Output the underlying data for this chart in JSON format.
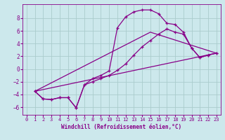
{
  "xlabel": "Windchill (Refroidissement éolien,°C)",
  "bg_color": "#cce8ec",
  "grid_color": "#aacccc",
  "line_color": "#880088",
  "xlim": [
    -0.5,
    23.5
  ],
  "ylim": [
    -7.2,
    10.2
  ],
  "yticks": [
    -6,
    -4,
    -2,
    0,
    2,
    4,
    6,
    8
  ],
  "xticks": [
    0,
    1,
    2,
    3,
    4,
    5,
    6,
    7,
    8,
    9,
    10,
    11,
    12,
    13,
    14,
    15,
    16,
    17,
    18,
    19,
    20,
    21,
    22,
    23
  ],
  "curve1_x": [
    1,
    2,
    3,
    4,
    5,
    6,
    7,
    8,
    9,
    10,
    11,
    12,
    13,
    14,
    15,
    16,
    17,
    18,
    19,
    20,
    21,
    22,
    23
  ],
  "curve1_y": [
    -3.5,
    -4.7,
    -4.8,
    -4.5,
    -4.5,
    -6.1,
    -2.5,
    -2.0,
    -1.5,
    -1.0,
    -0.2,
    0.8,
    2.2,
    3.5,
    4.5,
    5.5,
    6.3,
    5.8,
    5.5,
    3.3,
    1.8,
    2.2,
    2.5
  ],
  "curve2_x": [
    1,
    2,
    3,
    4,
    5,
    6,
    7,
    8,
    9,
    10,
    11,
    12,
    13,
    14,
    15,
    16,
    17,
    18,
    19,
    20,
    21,
    22,
    23
  ],
  "curve2_y": [
    -3.5,
    -4.7,
    -4.8,
    -4.5,
    -4.5,
    -6.1,
    -2.5,
    -1.5,
    -1.0,
    -0.3,
    6.5,
    8.2,
    9.0,
    9.3,
    9.3,
    8.7,
    7.2,
    7.0,
    5.8,
    3.3,
    1.8,
    2.2,
    2.5
  ],
  "line1_x": [
    1,
    23
  ],
  "line1_y": [
    -3.5,
    2.5
  ],
  "line2_x": [
    1,
    15,
    23
  ],
  "line2_y": [
    -3.5,
    5.8,
    2.5
  ]
}
